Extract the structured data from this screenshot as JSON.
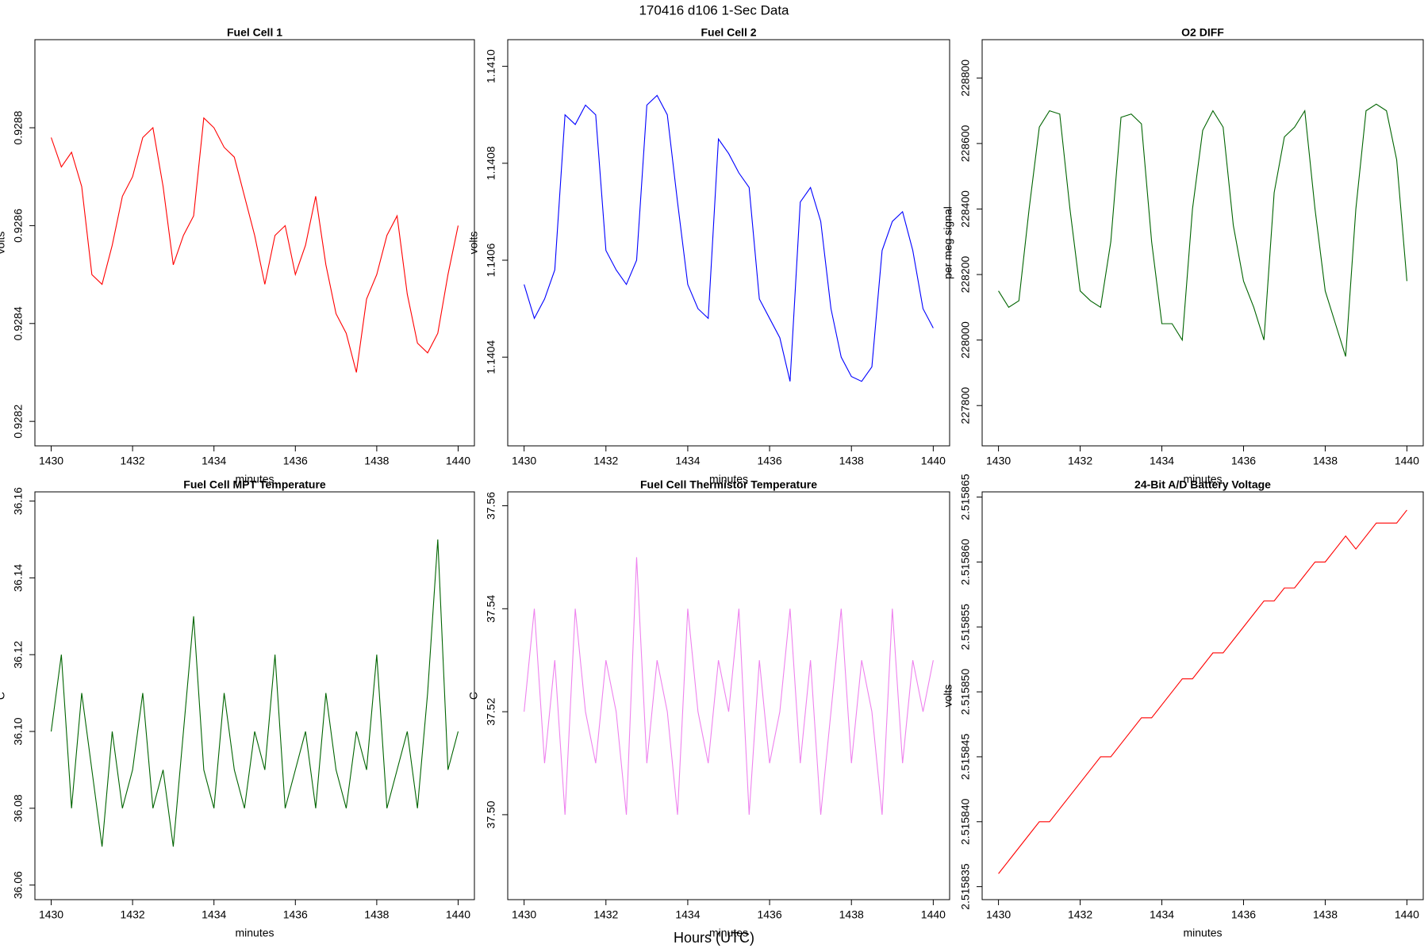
{
  "suptitle": "170416   d106   1-Sec Data",
  "supxlabel": "Hours (UTC)",
  "chart_data": [
    {
      "type": "line",
      "title": "Fuel Cell 1",
      "xlabel": "minutes",
      "ylabel": "volts",
      "color": "#ff0000",
      "x": [
        1430,
        1430.25,
        1430.5,
        1430.75,
        1431,
        1431.25,
        1431.5,
        1431.75,
        1432,
        1432.25,
        1432.5,
        1432.75,
        1433,
        1433.25,
        1433.5,
        1433.75,
        1434,
        1434.25,
        1434.5,
        1434.75,
        1435,
        1435.25,
        1435.5,
        1435.75,
        1436,
        1436.25,
        1436.5,
        1436.75,
        1437,
        1437.25,
        1437.5,
        1437.75,
        1438,
        1438.25,
        1438.5,
        1438.75,
        1439,
        1439.25,
        1439.5,
        1439.75,
        1440
      ],
      "values": [
        0.92878,
        0.92872,
        0.92875,
        0.92868,
        0.9285,
        0.92848,
        0.92856,
        0.92866,
        0.9287,
        0.92878,
        0.9288,
        0.92868,
        0.92852,
        0.92858,
        0.92862,
        0.92882,
        0.9288,
        0.92876,
        0.92874,
        0.92866,
        0.92858,
        0.92848,
        0.92858,
        0.9286,
        0.9285,
        0.92856,
        0.92866,
        0.92852,
        0.92842,
        0.92838,
        0.9283,
        0.92845,
        0.9285,
        0.92858,
        0.92862,
        0.92846,
        0.92836,
        0.92834,
        0.92838,
        0.9285,
        0.9286
      ],
      "xlim": [
        1429.6,
        1440.4
      ],
      "xticks": [
        1430,
        1432,
        1434,
        1436,
        1438,
        1440
      ],
      "ylim": [
        0.92815,
        0.92898
      ],
      "yticks": [
        0.9282,
        0.9284,
        0.9286,
        0.9288
      ]
    },
    {
      "type": "line",
      "title": "Fuel Cell 2",
      "xlabel": "minutes",
      "ylabel": "volts",
      "color": "#0000ff",
      "x": [
        1430,
        1430.25,
        1430.5,
        1430.75,
        1431,
        1431.25,
        1431.5,
        1431.75,
        1432,
        1432.25,
        1432.5,
        1432.75,
        1433,
        1433.25,
        1433.5,
        1433.75,
        1434,
        1434.25,
        1434.5,
        1434.75,
        1435,
        1435.25,
        1435.5,
        1435.75,
        1436,
        1436.25,
        1436.5,
        1436.75,
        1437,
        1437.25,
        1437.5,
        1437.75,
        1438,
        1438.25,
        1438.5,
        1438.75,
        1439,
        1439.25,
        1439.5,
        1439.75,
        1440
      ],
      "values": [
        1.14055,
        1.14048,
        1.14052,
        1.14058,
        1.1409,
        1.14088,
        1.14092,
        1.1409,
        1.14062,
        1.14058,
        1.14055,
        1.1406,
        1.14092,
        1.14094,
        1.1409,
        1.14072,
        1.14055,
        1.1405,
        1.14048,
        1.14085,
        1.14082,
        1.14078,
        1.14075,
        1.14052,
        1.14048,
        1.14044,
        1.14035,
        1.14072,
        1.14075,
        1.14068,
        1.1405,
        1.1404,
        1.14036,
        1.14035,
        1.14038,
        1.14062,
        1.14068,
        1.1407,
        1.14062,
        1.1405,
        1.14046
      ],
      "xlim": [
        1429.6,
        1440.4
      ],
      "xticks": [
        1430,
        1432,
        1434,
        1436,
        1438,
        1440
      ],
      "ylim": [
        1.140217,
        1.141055
      ],
      "yticks": [
        1.1404,
        1.1406,
        1.1408,
        {
          "value": 1.141,
          "label": "1.1410"
        }
      ]
    },
    {
      "type": "line",
      "title": "O2 DIFF",
      "xlabel": "minutes",
      "ylabel": "per meg signal",
      "color": "#006400",
      "x": [
        1430,
        1430.25,
        1430.5,
        1430.75,
        1431,
        1431.25,
        1431.5,
        1431.75,
        1432,
        1432.25,
        1432.5,
        1432.75,
        1433,
        1433.25,
        1433.5,
        1433.75,
        1434,
        1434.25,
        1434.5,
        1434.75,
        1435,
        1435.25,
        1435.5,
        1435.75,
        1436,
        1436.25,
        1436.5,
        1436.75,
        1437,
        1437.25,
        1437.5,
        1437.75,
        1438,
        1438.25,
        1438.5,
        1438.75,
        1439,
        1439.25,
        1439.5,
        1439.75,
        1440
      ],
      "values": [
        228150,
        228100,
        228120,
        228400,
        228650,
        228700,
        228690,
        228400,
        228150,
        228120,
        228100,
        228300,
        228680,
        228690,
        228660,
        228300,
        228050,
        228050,
        228000,
        228400,
        228640,
        228700,
        228650,
        228350,
        228180,
        228100,
        228000,
        228450,
        228620,
        228650,
        228700,
        228400,
        228150,
        228050,
        227950,
        228400,
        228700,
        228720,
        228700,
        228550,
        228180
      ],
      "xlim": [
        1429.6,
        1440.4
      ],
      "xticks": [
        1430,
        1432,
        1434,
        1436,
        1438,
        1440
      ],
      "ylim": [
        227677,
        228917
      ],
      "yticks": [
        227800,
        228000,
        228200,
        228400,
        228600,
        228800
      ]
    },
    {
      "type": "line",
      "title": "Fuel Cell MPT Temperature",
      "xlabel": "minutes",
      "ylabel": "C",
      "color": "#006400",
      "x": [
        1430,
        1430.25,
        1430.5,
        1430.75,
        1431,
        1431.25,
        1431.5,
        1431.75,
        1432,
        1432.25,
        1432.5,
        1432.75,
        1433,
        1433.25,
        1433.5,
        1433.75,
        1434,
        1434.25,
        1434.5,
        1434.75,
        1435,
        1435.25,
        1435.5,
        1435.75,
        1436,
        1436.25,
        1436.5,
        1436.75,
        1437,
        1437.25,
        1437.5,
        1437.75,
        1438,
        1438.25,
        1438.5,
        1438.75,
        1439,
        1439.25,
        1439.5,
        1439.75,
        1440
      ],
      "values": [
        36.1,
        36.12,
        36.08,
        36.11,
        36.09,
        36.07,
        36.1,
        36.08,
        36.09,
        36.11,
        36.08,
        36.09,
        36.07,
        36.1,
        36.13,
        36.09,
        36.08,
        36.11,
        36.09,
        36.08,
        36.1,
        36.09,
        36.12,
        36.08,
        36.09,
        36.1,
        36.08,
        36.11,
        36.09,
        36.08,
        36.1,
        36.09,
        36.12,
        36.08,
        36.09,
        36.1,
        36.08,
        36.11,
        36.15,
        36.09,
        36.1
      ],
      "xlim": [
        1429.6,
        1440.4
      ],
      "xticks": [
        1430,
        1432,
        1434,
        1436,
        1438,
        1440
      ],
      "ylim": [
        36.0562,
        36.1624
      ],
      "yticks": [
        36.06,
        36.08,
        {
          "value": 36.1,
          "label": "36.10"
        },
        36.12,
        36.14,
        36.16
      ]
    },
    {
      "type": "line",
      "title": "Fuel Cell Thermistor Temperature",
      "xlabel": "minutes",
      "ylabel": "C",
      "color": "#ee82ee",
      "x": [
        1430,
        1430.25,
        1430.5,
        1430.75,
        1431,
        1431.25,
        1431.5,
        1431.75,
        1432,
        1432.25,
        1432.5,
        1432.75,
        1433,
        1433.25,
        1433.5,
        1433.75,
        1434,
        1434.25,
        1434.5,
        1434.75,
        1435,
        1435.25,
        1435.5,
        1435.75,
        1436,
        1436.25,
        1436.5,
        1436.75,
        1437,
        1437.25,
        1437.5,
        1437.75,
        1438,
        1438.25,
        1438.5,
        1438.75,
        1439,
        1439.25,
        1439.5,
        1439.75,
        1440
      ],
      "values": [
        37.52,
        37.54,
        37.51,
        37.53,
        37.5,
        37.54,
        37.52,
        37.51,
        37.53,
        37.52,
        37.5,
        37.55,
        37.51,
        37.53,
        37.52,
        37.5,
        37.54,
        37.52,
        37.51,
        37.53,
        37.52,
        37.54,
        37.5,
        37.53,
        37.51,
        37.52,
        37.54,
        37.51,
        37.53,
        37.5,
        37.52,
        37.54,
        37.51,
        37.53,
        37.52,
        37.5,
        37.54,
        37.51,
        37.53,
        37.52,
        37.53
      ],
      "xlim": [
        1429.6,
        1440.4
      ],
      "xticks": [
        1430,
        1432,
        1434,
        1436,
        1438,
        1440
      ],
      "ylim": [
        37.4835,
        37.5627
      ],
      "yticks": [
        {
          "value": 37.5,
          "label": "37.50"
        },
        37.52,
        37.54,
        37.56
      ]
    },
    {
      "type": "line",
      "title": "24-Bit A/D Battery Voltage",
      "xlabel": "minutes",
      "ylabel": "volts",
      "color": "#ff0000",
      "x": [
        1430,
        1430.25,
        1430.5,
        1430.75,
        1431,
        1431.25,
        1431.5,
        1431.75,
        1432,
        1432.25,
        1432.5,
        1432.75,
        1433,
        1433.25,
        1433.5,
        1433.75,
        1434,
        1434.25,
        1434.5,
        1434.75,
        1435,
        1435.25,
        1435.5,
        1435.75,
        1436,
        1436.25,
        1436.5,
        1436.75,
        1437,
        1437.25,
        1437.5,
        1437.75,
        1438,
        1438.25,
        1438.5,
        1438.75,
        1439,
        1439.25,
        1439.5,
        1439.75,
        1440
      ],
      "values": [
        2.515836,
        2.515837,
        2.515838,
        2.515839,
        2.51584,
        2.51584,
        2.515841,
        2.515842,
        2.515843,
        2.515844,
        2.515845,
        2.515845,
        2.515846,
        2.515847,
        2.515848,
        2.515848,
        2.515849,
        2.51585,
        2.515851,
        2.515851,
        2.515852,
        2.515853,
        2.515853,
        2.515854,
        2.515855,
        2.515856,
        2.515857,
        2.515857,
        2.515858,
        2.515858,
        2.515859,
        2.51586,
        2.51586,
        2.515861,
        2.515862,
        2.515861,
        2.515862,
        2.515863,
        2.515863,
        2.515863,
        2.515864
      ],
      "xlim": [
        1429.6,
        1440.4
      ],
      "xticks": [
        1430,
        1432,
        1434,
        1436,
        1438,
        1440
      ],
      "ylim": [
        2.515834,
        2.5158654
      ],
      "yticks": [
        2.515835,
        {
          "value": 2.51584,
          "label": "2.515840"
        },
        2.515845,
        {
          "value": 2.51585,
          "label": "2.515850"
        },
        2.515855,
        {
          "value": 2.51586,
          "label": "2.515860"
        },
        2.515865
      ]
    }
  ]
}
